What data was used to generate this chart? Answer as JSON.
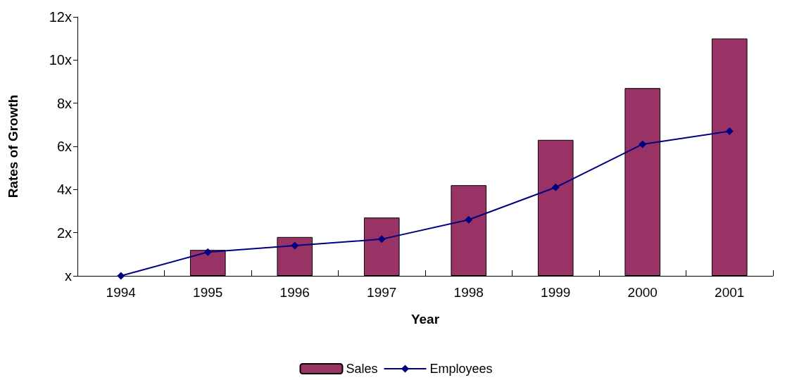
{
  "chart_data": {
    "type": "bar",
    "xlabel": "Year",
    "ylabel": "Rates of Growth",
    "categories": [
      "1994",
      "1995",
      "1996",
      "1997",
      "1998",
      "1999",
      "2000",
      "2001"
    ],
    "series": [
      {
        "name": "Sales",
        "color": "#993366",
        "values": [
          0,
          1.2,
          1.8,
          2.7,
          4.2,
          6.3,
          8.7,
          11.0
        ]
      },
      {
        "name": "Employees",
        "type": "line",
        "color": "#000080",
        "marker": "diamond",
        "values": [
          0,
          1.1,
          1.4,
          1.7,
          2.6,
          4.1,
          6.1,
          6.7
        ]
      }
    ],
    "ylim": [
      0,
      12
    ],
    "yticks": [
      {
        "value": 0,
        "label": "x"
      },
      {
        "value": 2,
        "label": "2x"
      },
      {
        "value": 4,
        "label": "4x"
      },
      {
        "value": 6,
        "label": "6x"
      },
      {
        "value": 8,
        "label": "8x"
      },
      {
        "value": 10,
        "label": "10x"
      },
      {
        "value": 12,
        "label": "12x"
      }
    ],
    "grid": false,
    "legend": "bottom"
  }
}
